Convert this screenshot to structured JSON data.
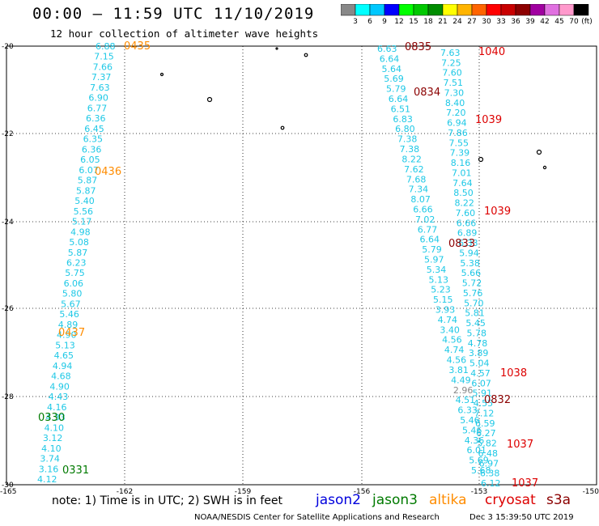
{
  "header": {
    "title": "00:00 – 11:59 UTC 11/10/2019",
    "subtitle": "12 hour collection of altimeter wave heights"
  },
  "colorbar": {
    "colors": [
      "#888888",
      "#00ffff",
      "#00c8ff",
      "#0000ff",
      "#00ff00",
      "#00c800",
      "#008c00",
      "#ffff00",
      "#ffb400",
      "#ff6400",
      "#ff0000",
      "#c80000",
      "#8c0000",
      "#a000a0",
      "#e070e0",
      "#ff99cc",
      "#000000"
    ],
    "labels": [
      "3",
      "6",
      "9",
      "12",
      "15",
      "18",
      "21",
      "24",
      "27",
      "30",
      "33",
      "36",
      "39",
      "42",
      "45",
      "70"
    ],
    "unit": "(ft)"
  },
  "axes": {
    "lat_labels": [
      "-20",
      "-22",
      "-24",
      "-26",
      "-28",
      "-30"
    ],
    "lon_labels": [
      "-165",
      "-162",
      "-159",
      "-156",
      "-153",
      "-150"
    ]
  },
  "tracks": {
    "left": [
      "6.88",
      "7.15",
      "7.66",
      "7.37",
      "7.63",
      "6.90",
      "6.77",
      "6.36",
      "6.45",
      "6.35",
      "6.36",
      "6.05",
      "6.07",
      "5.87",
      "5.87",
      "5.40",
      "5.56",
      "5.17",
      "4.98",
      "5.08",
      "5.87",
      "6.23",
      "5.75",
      "6.06",
      "5.80",
      "5.67",
      "5.46",
      "4.89",
      "4.90",
      "5.13",
      "4.65",
      "4.94",
      "4.68",
      "4.90",
      "4.43",
      "4.16",
      "4.33",
      "4.10",
      "3.12",
      "4.10",
      "3.74",
      "3.16",
      "4.12"
    ],
    "mid": [
      "6.63",
      "6.64",
      "5.64",
      "5.69",
      "5.79",
      "6.64",
      "6.51",
      "6.83",
      "6.80",
      "7.38",
      "7.38",
      "8.22",
      "7.62",
      "7.68",
      "7.34",
      "8.07",
      "6.66",
      "7.02",
      "6.77",
      "6.64",
      "5.79",
      "5.97",
      "5.34",
      "5.13",
      "5.23",
      "5.15",
      "3.93",
      "4.74",
      "3.40",
      "4.56",
      "4.74",
      "4.56",
      "3.81",
      "4.49",
      "2.96",
      "4.51",
      "6.33",
      "5.46",
      "5.46",
      "4.36",
      "6.01",
      "5.69",
      "5.68"
    ],
    "right": [
      "7.63",
      "7.25",
      "7.60",
      "7.51",
      "7.30",
      "8.40",
      "7.20",
      "6.94",
      "7.86",
      "7.55",
      "7.39",
      "8.16",
      "7.01",
      "7.64",
      "8.50",
      "8.22",
      "7.60",
      "6.66",
      "6.89",
      "6.33",
      "5.94",
      "5.38",
      "5.66",
      "5.72",
      "5.76",
      "5.70",
      "5.81",
      "5.45",
      "5.78",
      "4.78",
      "3.89",
      "5.04",
      "4.57",
      "6.07",
      "5.91",
      "4.55",
      "7.12",
      "6.59",
      "6.27",
      "5.82",
      "6.48",
      "6.97",
      "6.38",
      "6.12"
    ]
  },
  "time_labels": [
    {
      "text": "0435",
      "sat": "altika"
    },
    {
      "text": "0436",
      "sat": "altika"
    },
    {
      "text": "0437",
      "sat": "altika"
    },
    {
      "text": "0330",
      "sat": "jason3"
    },
    {
      "text": "0331",
      "sat": "jason3"
    },
    {
      "text": "0835",
      "sat": "cryosat"
    },
    {
      "text": "0834",
      "sat": "cryosat"
    },
    {
      "text": "0833",
      "sat": "cryosat"
    },
    {
      "text": "0832",
      "sat": "cryosat"
    },
    {
      "text": "1040",
      "sat": "s3a"
    },
    {
      "text": "1039",
      "sat": "s3a"
    },
    {
      "text": "1039",
      "sat": "s3a"
    },
    {
      "text": "1038",
      "sat": "s3a"
    },
    {
      "text": "1037",
      "sat": "s3a"
    },
    {
      "text": "1037",
      "sat": "s3a"
    }
  ],
  "sat_colors": {
    "altika": "#ff8c00",
    "jason3": "#007a00",
    "cryosat": "#8b0000",
    "s3a": "#dd0000",
    "track": "#1ec8e6"
  },
  "legend": {
    "note": "note: 1) Time is in UTC; 2) SWH is in feet",
    "jason2": "jason2",
    "jason3": "jason3",
    "altika": "altika",
    "cryosat": "cryosat",
    "s3a": "s3a"
  },
  "footer": {
    "credit": "NOAA/NESDIS Center for Satellite Applications and Research",
    "date": "Dec  3 15:39:50 UTC 2019"
  }
}
